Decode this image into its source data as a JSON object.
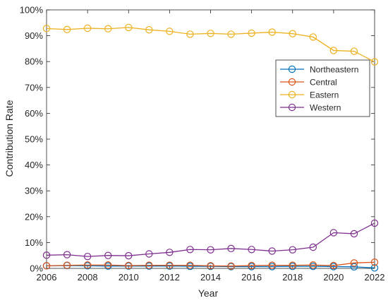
{
  "chart_data": {
    "type": "line",
    "title": "",
    "xlabel": "Year",
    "ylabel": "Contribution Rate",
    "x": [
      2006,
      2007,
      2008,
      2009,
      2010,
      2011,
      2012,
      2013,
      2014,
      2015,
      2016,
      2017,
      2018,
      2019,
      2020,
      2021,
      2022
    ],
    "xlim": [
      2006,
      2022
    ],
    "ylim": [
      0,
      100
    ],
    "x_ticks": [
      "2006",
      "2008",
      "2010",
      "2012",
      "2014",
      "2016",
      "2018",
      "2020",
      "2022"
    ],
    "y_ticks": [
      "0%",
      "10%",
      "20%",
      "30%",
      "40%",
      "50%",
      "60%",
      "70%",
      "80%",
      "90%",
      "100%"
    ],
    "grid": false,
    "legend_position": "top-right",
    "marker": "open-circle",
    "series": [
      {
        "name": "Northeastern",
        "color": "#0072BD",
        "values": [
          1.0,
          1.1,
          1.0,
          0.9,
          0.9,
          0.9,
          0.9,
          0.8,
          0.8,
          0.7,
          0.7,
          0.7,
          0.8,
          0.8,
          0.7,
          0.6,
          0.2
        ]
      },
      {
        "name": "Central",
        "color": "#D95319",
        "values": [
          1.0,
          1.2,
          1.3,
          1.3,
          1.1,
          1.2,
          1.2,
          1.2,
          1.0,
          0.9,
          1.1,
          1.2,
          1.2,
          1.3,
          1.1,
          2.1,
          2.4
        ]
      },
      {
        "name": "Eastern",
        "color": "#EDB120",
        "values": [
          92.8,
          92.4,
          92.9,
          92.7,
          93.2,
          92.3,
          91.7,
          90.6,
          90.9,
          90.6,
          91.0,
          91.4,
          90.8,
          89.5,
          84.3,
          84.0,
          79.9
        ]
      },
      {
        "name": "Western",
        "color": "#7E2F8E",
        "values": [
          5.1,
          5.3,
          4.6,
          5.0,
          4.9,
          5.6,
          6.2,
          7.3,
          7.2,
          7.7,
          7.3,
          6.7,
          7.2,
          8.2,
          13.8,
          13.4,
          17.5
        ]
      }
    ]
  }
}
